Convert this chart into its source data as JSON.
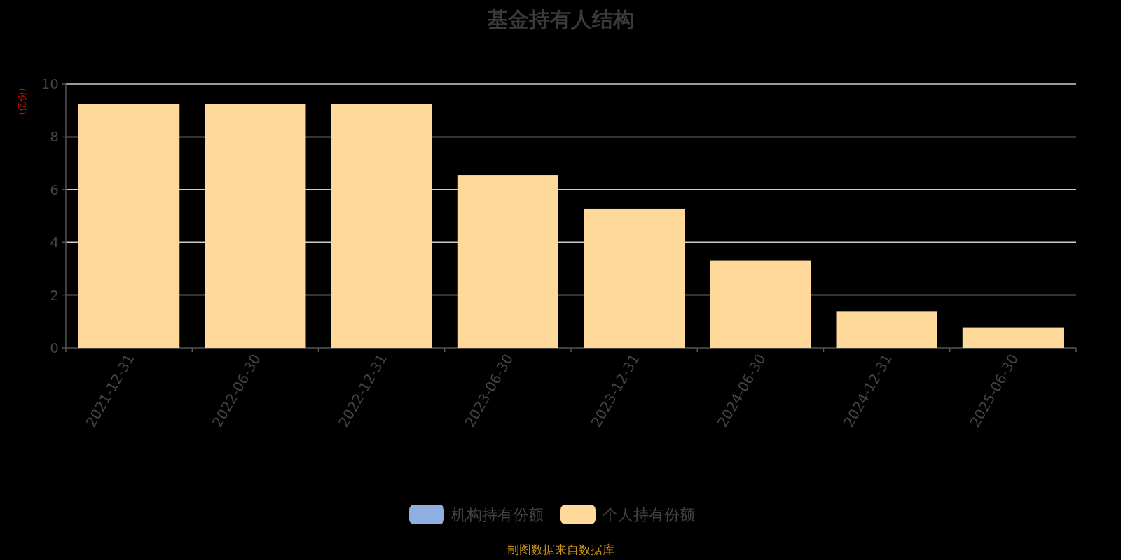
{
  "chart_data": {
    "type": "bar",
    "title": "基金持有人结构",
    "ylabel": "(亿份)",
    "categories": [
      "2021-12-31",
      "2022-06-30",
      "2022-12-31",
      "2023-06-30",
      "2023-12-31",
      "2024-06-30",
      "2024-12-31",
      "2025-06-30"
    ],
    "series": [
      {
        "name": "机构持有份额",
        "color": "#8eb0e0",
        "values": [
          0,
          0,
          0,
          0,
          0,
          0,
          0,
          0
        ]
      },
      {
        "name": "个人持有份额",
        "color": "#ffd99a",
        "values": [
          9.25,
          9.25,
          9.25,
          6.55,
          5.28,
          3.3,
          1.37,
          0.78
        ]
      }
    ],
    "stacked": true,
    "ylim": [
      0,
      10
    ],
    "yticks": [
      0,
      2,
      4,
      6,
      8,
      10
    ],
    "grid": "y",
    "legend": "bottom",
    "annotations": [
      "制图数据来自数据库"
    ]
  }
}
